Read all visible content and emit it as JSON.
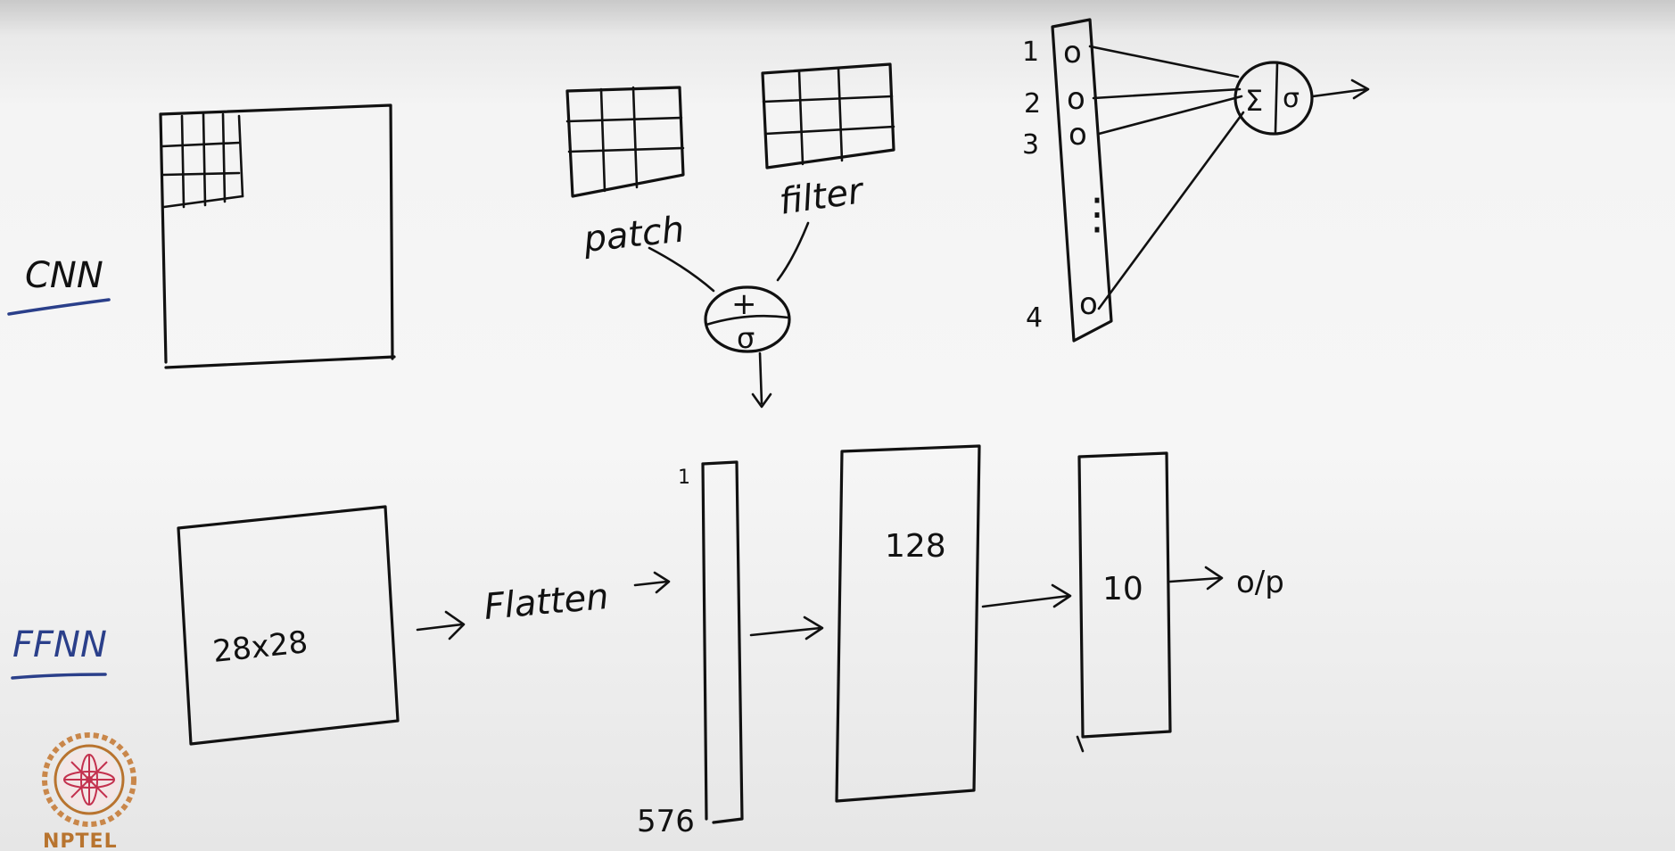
{
  "labels": {
    "cnn": "CNN",
    "ffnn": "FFNN",
    "patch": "patch",
    "filter": "filter",
    "node_plus": "+",
    "node_sigma": "σ",
    "sum_symbol": "Σ",
    "sum_act": "σ",
    "flatten": "Flatten",
    "input_size": "28x28",
    "flat_top": "1",
    "flat_bottom": "576",
    "hidden_units": "128",
    "output_units": "10",
    "output": "o/p",
    "neuron_indices": [
      "1",
      "2",
      "3",
      "4"
    ],
    "neuron_dots": "⋮",
    "neuron_glyph": "o"
  },
  "logo": {
    "text": "NPTEL",
    "color": "#b8742f"
  },
  "colors": {
    "ink": "#111111",
    "underline": "#2a3f8a"
  }
}
